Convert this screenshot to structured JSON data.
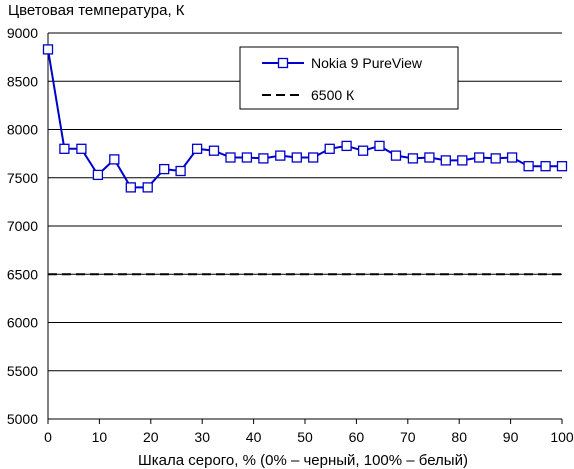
{
  "chart_data": {
    "type": "line",
    "ylabel": "Цветовая температура, К",
    "xlabel": "Шкала серого, % (0% – черный, 100% – белый)",
    "xlim": [
      0,
      100
    ],
    "ylim": [
      5000,
      9000
    ],
    "x_ticks": [
      "0",
      "10",
      "20",
      "30",
      "40",
      "50",
      "60",
      "70",
      "80",
      "90",
      "100"
    ],
    "y_ticks": [
      "5000",
      "5500",
      "6000",
      "6500",
      "7000",
      "7500",
      "8000",
      "8500",
      "9000"
    ],
    "grid": "horizontal",
    "legend_position": "top-right",
    "series": [
      {
        "name": "Nokia 9 PureView",
        "color": "#0000cc",
        "marker": "open-square",
        "x": [
          0,
          3.2,
          6.5,
          9.7,
          12.9,
          16.1,
          19.4,
          22.6,
          25.8,
          29.0,
          32.3,
          35.5,
          38.7,
          41.9,
          45.2,
          48.4,
          51.6,
          54.8,
          58.1,
          61.3,
          64.5,
          67.7,
          71.0,
          74.2,
          77.4,
          80.6,
          83.9,
          87.1,
          90.3,
          93.5,
          96.8,
          100
        ],
        "y": [
          8830,
          7800,
          7800,
          7530,
          7690,
          7400,
          7400,
          7590,
          7570,
          7800,
          7780,
          7710,
          7710,
          7700,
          7730,
          7710,
          7710,
          7800,
          7830,
          7780,
          7830,
          7730,
          7700,
          7710,
          7680,
          7680,
          7710,
          7700,
          7710,
          7620,
          7620,
          7620
        ]
      },
      {
        "name": "6500 К",
        "color": "#000000",
        "style": "dashed",
        "x": [
          0,
          100
        ],
        "y": [
          6500,
          6500
        ]
      }
    ]
  }
}
